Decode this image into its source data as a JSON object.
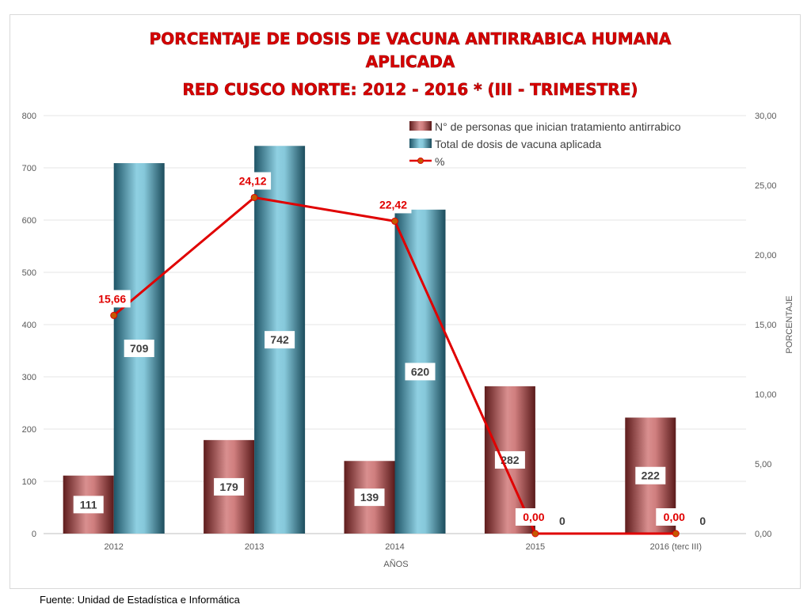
{
  "title_lines": [
    "PORCENTAJE DE DOSIS DE VACUNA ANTIRRABICA HUMANA",
    "APLICADA",
    "RED CUSCO NORTE: 2012 - 2016 * (III - TRIMESTRE)"
  ],
  "source": "Fuente: Unidad de Estadística e Informática",
  "chart_data": {
    "type": "bar",
    "categories": [
      "2012",
      "2013",
      "2014",
      "2015",
      "2016 (terc III)"
    ],
    "xlabel": "AÑOS",
    "ylabel": "",
    "y2label": "PORCENTAJE",
    "ylim": [
      0,
      800
    ],
    "y_ticks": [
      "0",
      "100",
      "200",
      "300",
      "400",
      "500",
      "600",
      "700",
      "800"
    ],
    "y2lim": [
      0,
      30
    ],
    "y2_ticks": [
      "0,00",
      "5,00",
      "10,00",
      "15,00",
      "20,00",
      "25,00",
      "30,00"
    ],
    "grid": true,
    "legend_position": "top-right",
    "series": [
      {
        "name": "N° de personas que inician tratamiento antirrabico",
        "type": "bar",
        "axis": "left",
        "values": [
          111,
          179,
          139,
          282,
          222
        ],
        "labels": [
          "111",
          "179",
          "139",
          "282",
          "222"
        ],
        "color": "#a04848"
      },
      {
        "name": "Total de dosis de vacuna aplicada",
        "type": "bar",
        "axis": "left",
        "values": [
          709,
          742,
          620,
          0,
          0
        ],
        "labels": [
          "709",
          "742",
          "620",
          "0",
          "0"
        ],
        "color": "#3f8ea8"
      },
      {
        "name": "%",
        "type": "line",
        "axis": "right",
        "values": [
          15.66,
          24.12,
          22.42,
          0.0,
          0.0
        ],
        "labels": [
          "15,66",
          "24,12",
          "22,42",
          "0,00",
          "0,00"
        ],
        "color": "#e00000"
      }
    ]
  }
}
